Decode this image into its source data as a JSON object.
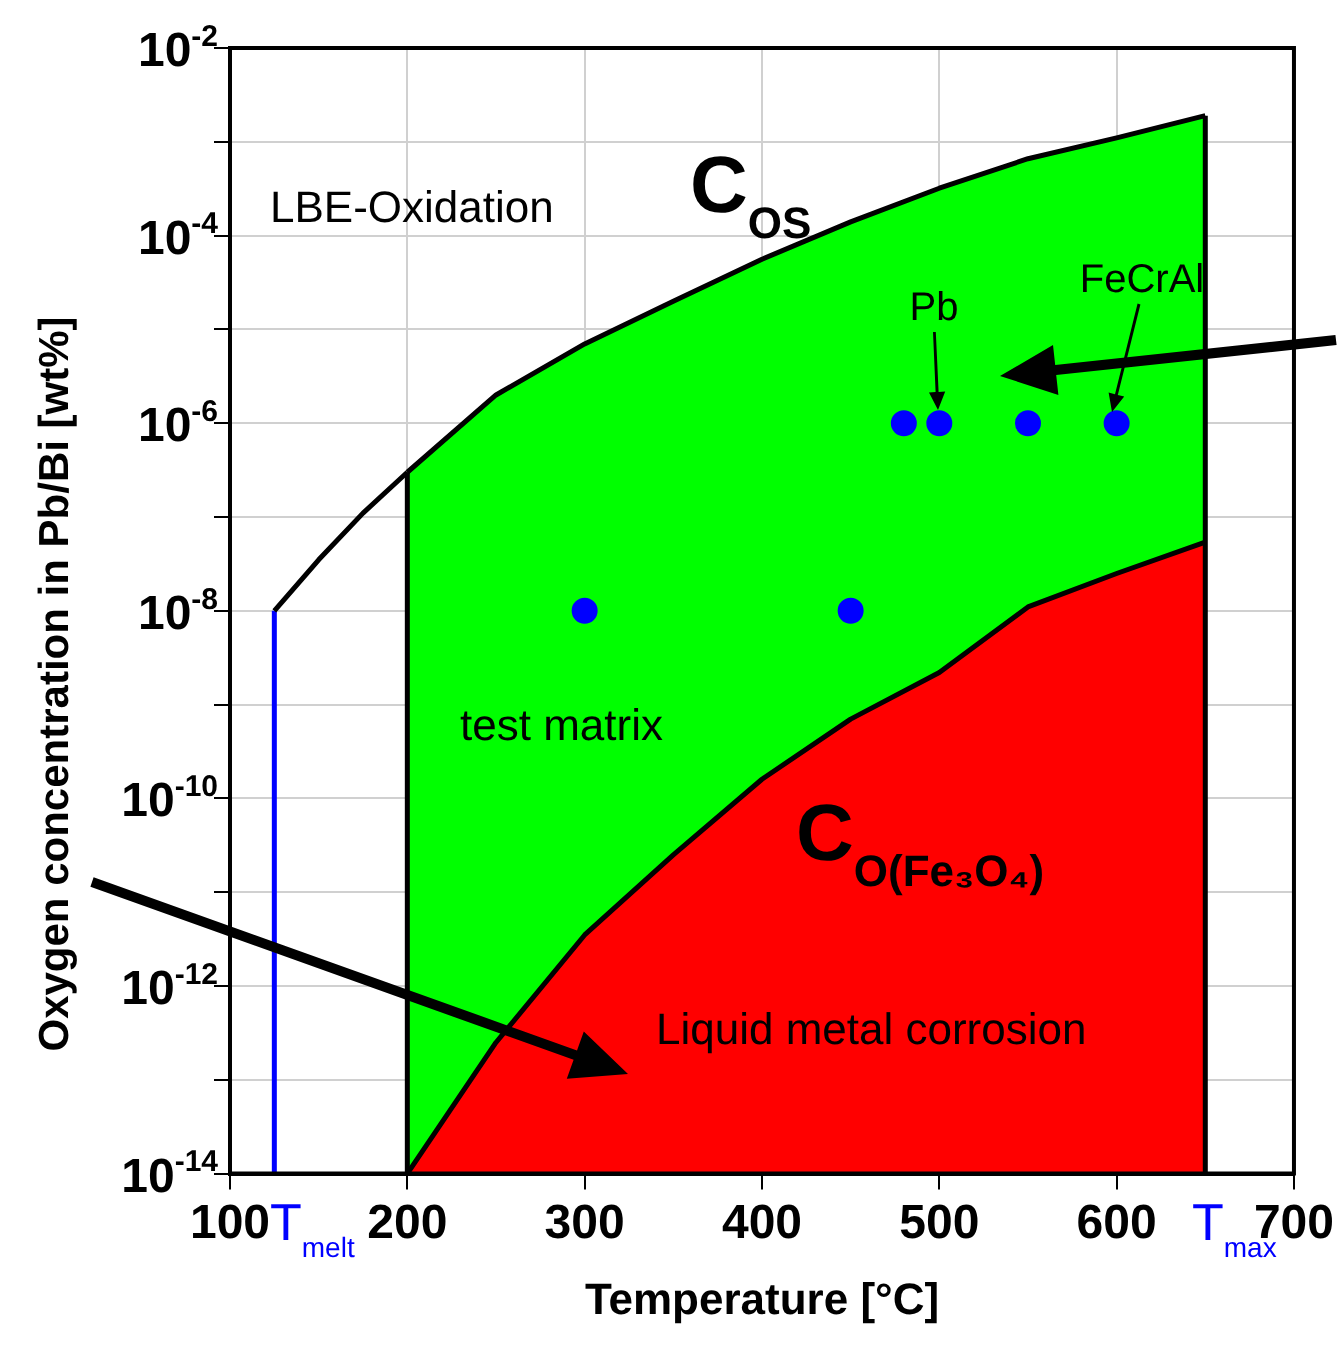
{
  "chart_data": {
    "type": "line",
    "xlabel": "Temperature [°C]",
    "ylabel": "Oxygen concentration in Pb/Bi [wt%]",
    "log": "y",
    "grid": true,
    "legend": false,
    "xlim": [
      100,
      700
    ],
    "xticks": [
      100,
      200,
      300,
      400,
      500,
      600,
      700
    ],
    "ylim": [
      1e-14,
      0.01
    ],
    "yticks": [
      {
        "value": 1e-14,
        "label": "10$^{-14}$"
      },
      {
        "value": 1e-13,
        "label": null
      },
      {
        "value": 1e-12,
        "label": "10$^{-12}$"
      },
      {
        "value": 1e-11,
        "label": null
      },
      {
        "value": 1e-10,
        "label": "10$^{-10}$"
      },
      {
        "value": 1e-09,
        "label": null
      },
      {
        "value": 1e-08,
        "label": "10$^{-8}$"
      },
      {
        "value": 1e-07,
        "label": null
      },
      {
        "value": 1e-06,
        "label": "10$^{-6}$"
      },
      {
        "value": 1e-05,
        "label": null
      },
      {
        "value": 0.0001,
        "label": "10$^{-4}$"
      },
      {
        "value": 0.001,
        "label": null
      },
      {
        "value": 0.01,
        "label": "10$^{-2}$"
      }
    ],
    "series": [
      {
        "type": "area",
        "color": "#00ff00",
        "x": [
          200,
          250,
          300,
          350,
          400,
          450,
          500,
          550,
          600,
          650
        ],
        "values": [
          3e-07,
          2e-06,
          7e-06,
          2e-05,
          5.6e-05,
          0.00014,
          0.00032,
          0.00066,
          0.0011,
          0.0019
        ]
      },
      {
        "type": "area",
        "color": "#ff0000",
        "x": [
          200,
          250,
          300,
          350,
          400,
          450,
          500,
          550,
          600,
          650
        ],
        "values": [
          1e-14,
          2.5e-13,
          3.5e-12,
          2.5e-11,
          1.6e-10,
          7e-10,
          2.2e-09,
          1.1e-08,
          2.5e-08,
          5.4e-08
        ]
      },
      {
        "type": "line",
        "color": "#000000",
        "x": [
          125,
          150,
          175,
          200
        ],
        "values": [
          1e-08,
          3.5e-08,
          1.1e-07,
          3e-07
        ]
      },
      {
        "type": "line",
        "color": "#000000",
        "x": [
          200,
          200
        ],
        "values": [
          1e-14,
          3e-07
        ]
      },
      {
        "type": "line",
        "color": "#000000",
        "x": [
          650,
          650
        ],
        "values": [
          1e-14,
          0.0019
        ]
      },
      {
        "type": "line",
        "color": "#0000ff",
        "x": [
          125,
          125
        ],
        "values": [
          1e-14,
          1e-08
        ]
      },
      {
        "type": "scatter",
        "color": "#0000ff",
        "marker": "circle",
        "x": [
          300,
          450,
          480,
          500,
          550,
          600
        ],
        "values": [
          1e-08,
          1e-08,
          1e-06,
          1e-06,
          1e-06,
          1e-06
        ]
      }
    ],
    "annotations": [
      "LBE-Oxidation",
      "test matrix",
      "Liquid metal corrosion",
      "C$_{OS}$",
      "C$_{O(Fe₃O₄)}$",
      "Pb",
      "FeCrAl",
      "T$_{melt}$",
      "T$_{max}$"
    ]
  }
}
